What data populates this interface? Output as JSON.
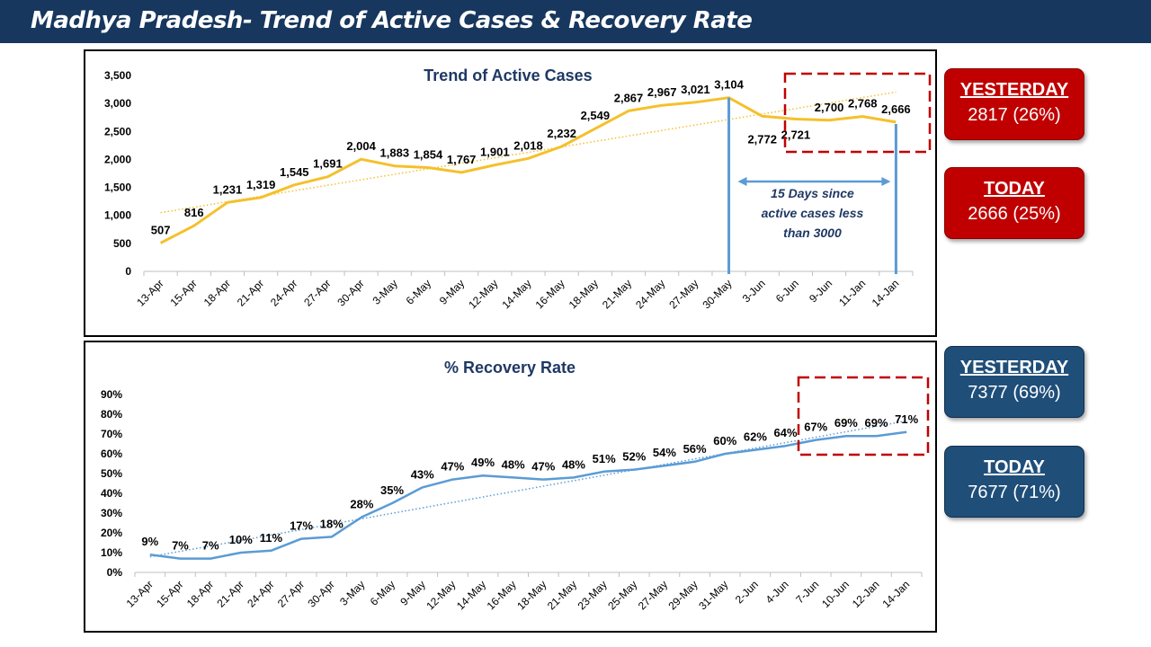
{
  "banner": {
    "title": "Madhya Pradesh- Trend of Active Cases & Recovery Rate"
  },
  "colors": {
    "banner_bg": "#17375e",
    "active_line": "#f5c02c",
    "recovery_line": "#5b9bd5",
    "alert_red": "#c00000",
    "card_blue": "#1f4e79"
  },
  "cards": {
    "active_yesterday": {
      "title": "YESTERDAY",
      "value": "2817 (26%)"
    },
    "active_today": {
      "title": "TODAY",
      "value": "2666 (25%)"
    },
    "recovery_yesterday": {
      "title": "YESTERDAY",
      "value": "7377 (69%)"
    },
    "recovery_today": {
      "title": "TODAY",
      "value": "7677 (71%)"
    }
  },
  "chart_data": [
    {
      "type": "line",
      "title": "Trend of Active Cases",
      "categories": [
        "13-Apr",
        "15-Apr",
        "18-Apr",
        "21-Apr",
        "24-Apr",
        "27-Apr",
        "30-Apr",
        "3-May",
        "6-May",
        "9-May",
        "12-May",
        "14-May",
        "16-May",
        "18-May",
        "21-May",
        "24-May",
        "27-May",
        "30-May",
        "3-Jun",
        "6-Jun",
        "9-Jun",
        "11-Jan",
        "14-Jan"
      ],
      "values": [
        507,
        816,
        1231,
        1319,
        1545,
        1691,
        2004,
        1883,
        1854,
        1767,
        1901,
        2018,
        2232,
        2549,
        2867,
        2967,
        3021,
        3104,
        2772,
        2721,
        2700,
        2768,
        2666
      ],
      "data_labels": [
        "507",
        "816",
        "1,231",
        "1,319",
        "1,545",
        "1,691",
        "2,004",
        "1,883",
        "1,854",
        "1,767",
        "1,901",
        "2,018",
        "2,232",
        "2,549",
        "2,867",
        "2,967",
        "3,021",
        "3,104",
        "2,772",
        "2,721",
        "2,700",
        "2,768",
        "2,666"
      ],
      "ylim": [
        0,
        3500
      ],
      "yticks": [
        "0",
        "500",
        "1,000",
        "1,500",
        "2,000",
        "2,500",
        "3,000",
        "3,500"
      ],
      "trendline": "linear, dotted",
      "grid": false,
      "annotation": {
        "text": [
          "15 Days since",
          "active cases less",
          "than 3000"
        ],
        "from": "30-May",
        "to": "14-Jan"
      },
      "highlight": "dashed box around 3-Jun to 14-Jan"
    },
    {
      "type": "line",
      "title": "% Recovery Rate",
      "categories": [
        "13-Apr",
        "15-Apr",
        "18-Apr",
        "21-Apr",
        "24-Apr",
        "27-Apr",
        "30-Apr",
        "3-May",
        "6-May",
        "9-May",
        "12-May",
        "14-May",
        "16-May",
        "18-May",
        "21-May",
        "23-May",
        "25-May",
        "27-May",
        "29-May",
        "31-May",
        "2-Jun",
        "4-Jun",
        "7-Jun",
        "10-Jun",
        "12-Jan",
        "14-Jan"
      ],
      "values": [
        9,
        7,
        7,
        10,
        11,
        17,
        18,
        28,
        35,
        43,
        47,
        49,
        48,
        47,
        48,
        51,
        52,
        54,
        56,
        60,
        62,
        64,
        67,
        69,
        69,
        71
      ],
      "data_labels": [
        "9%",
        "7%",
        "7%",
        "10%",
        "11%",
        "17%",
        "18%",
        "28%",
        "35%",
        "43%",
        "47%",
        "49%",
        "48%",
        "47%",
        "48%",
        "51%",
        "52%",
        "54%",
        "56%",
        "60%",
        "62%",
        "64%",
        "67%",
        "69%",
        "69%",
        "71%"
      ],
      "ylim": [
        0,
        90
      ],
      "yticks": [
        "0%",
        "10%",
        "20%",
        "30%",
        "40%",
        "50%",
        "60%",
        "70%",
        "80%",
        "90%"
      ],
      "trendline": "linear, dotted",
      "grid": false,
      "highlight": "dashed box around 7-Jun to 14-Jan"
    }
  ]
}
